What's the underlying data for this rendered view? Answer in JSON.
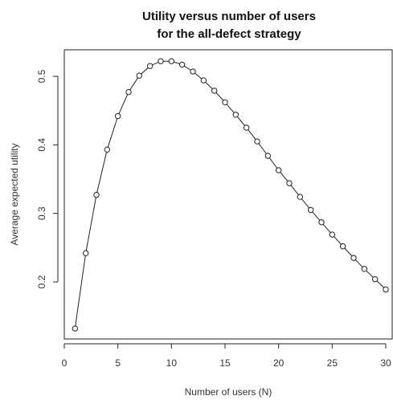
{
  "chart_data": {
    "type": "scatter",
    "title_lines": [
      "Utility versus number of users",
      "for the all-defect strategy"
    ],
    "xlabel": "Number of users (N)",
    "ylabel": "Average expected utility",
    "xlim": [
      0,
      30
    ],
    "ylim": [
      0.12,
      0.53
    ],
    "xticks": [
      0,
      5,
      10,
      15,
      20,
      25,
      30
    ],
    "yticks": [
      0.2,
      0.3,
      0.4,
      0.5
    ],
    "grid": false,
    "legend": "none",
    "marker": "open-circle",
    "connect_with_line": true,
    "x": [
      1,
      2,
      3,
      4,
      5,
      6,
      7,
      8,
      9,
      10,
      11,
      12,
      13,
      14,
      15,
      16,
      17,
      18,
      19,
      20,
      21,
      22,
      23,
      24,
      25,
      26,
      27,
      28,
      29,
      30
    ],
    "y": [
      0.132,
      0.242,
      0.327,
      0.393,
      0.442,
      0.477,
      0.501,
      0.515,
      0.522,
      0.522,
      0.517,
      0.507,
      0.494,
      0.479,
      0.462,
      0.444,
      0.425,
      0.405,
      0.384,
      0.363,
      0.344,
      0.324,
      0.305,
      0.287,
      0.269,
      0.252,
      0.235,
      0.219,
      0.204,
      0.189
    ]
  }
}
